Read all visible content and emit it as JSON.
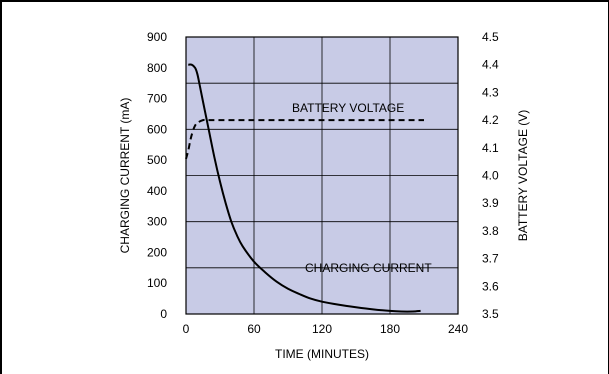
{
  "chart_data": {
    "type": "line",
    "xlabel": "TIME (MINUTES)",
    "ylabel_left": "CHARGING CURRENT (mA)",
    "ylabel_right": "BATTERY VOLTAGE (V)",
    "xlim": [
      0,
      240
    ],
    "ylim_left": [
      0,
      900
    ],
    "ylim_right": [
      3.5,
      4.5
    ],
    "x_ticks": [
      "0",
      "60",
      "120",
      "180",
      "240"
    ],
    "y_left_ticks": [
      "0",
      "100",
      "200",
      "300",
      "400",
      "500",
      "600",
      "700",
      "800",
      "900"
    ],
    "y_right_ticks": [
      "3.5",
      "3.6",
      "3.7",
      "3.8",
      "3.9",
      "4.0",
      "4.1",
      "4.2",
      "4.3",
      "4.4",
      "4.5"
    ],
    "grid": true,
    "series": [
      {
        "name": "CHARGING CURRENT",
        "axis": "left",
        "style": "solid",
        "x": [
          2,
          5,
          8,
          10,
          12,
          15,
          20,
          25,
          30,
          35,
          40,
          45,
          50,
          60,
          70,
          80,
          90,
          100,
          110,
          120,
          135,
          150,
          165,
          180,
          190,
          200,
          207
        ],
        "y": [
          810,
          810,
          800,
          780,
          745,
          690,
          600,
          510,
          430,
          360,
          300,
          255,
          220,
          170,
          135,
          105,
          82,
          65,
          50,
          40,
          30,
          22,
          15,
          10,
          8,
          8,
          10
        ]
      },
      {
        "name": "BATTERY VOLTAGE",
        "axis": "right",
        "style": "dashed",
        "x": [
          0,
          2,
          4,
          6,
          8,
          10,
          15,
          20,
          30,
          60,
          120,
          180,
          210
        ],
        "y": [
          4.06,
          4.09,
          4.13,
          4.16,
          4.18,
          4.19,
          4.2,
          4.2,
          4.2,
          4.2,
          4.2,
          4.2,
          4.2
        ]
      }
    ],
    "annotations": [
      "BATTERY VOLTAGE",
      "CHARGING CURRENT"
    ],
    "colors": {
      "plot_background": "#c8cbe6",
      "grid": "#000000",
      "lines": "#000000"
    }
  }
}
